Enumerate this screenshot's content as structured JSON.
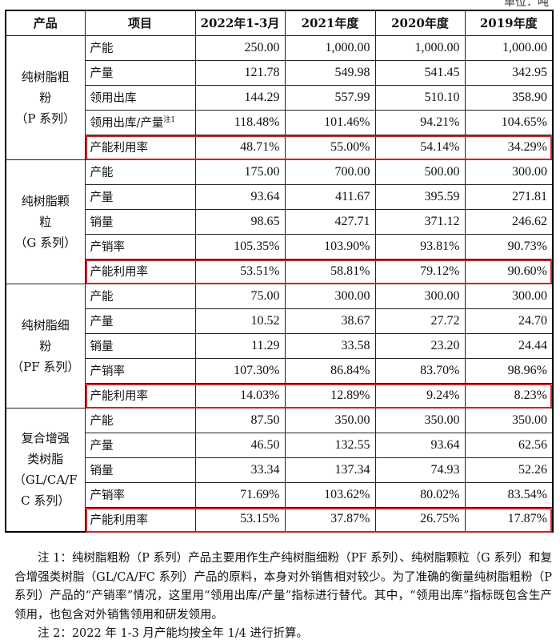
{
  "unit": "单位：吨",
  "headers": [
    "产品",
    "项目",
    "2022年1-3月",
    "2021年度",
    "2020年度",
    "2019年度"
  ],
  "groups": [
    {
      "product": [
        "纯树脂粗",
        "粉",
        "（P 系列）"
      ],
      "rows": [
        {
          "item": "产能",
          "values": [
            "250.00",
            "1,000.00",
            "1,000.00",
            "1,000.00"
          ]
        },
        {
          "item": "产量",
          "values": [
            "121.78",
            "549.98",
            "541.45",
            "342.95"
          ]
        },
        {
          "item": "领用出库",
          "values": [
            "144.29",
            "557.99",
            "510.10",
            "358.90"
          ]
        },
        {
          "item": "领用出库/产量",
          "sup": "注1",
          "values": [
            "118.48%",
            "101.46%",
            "94.21%",
            "104.65%"
          ]
        },
        {
          "item": "产能利用率",
          "highlight": true,
          "values": [
            "48.71%",
            "55.00%",
            "54.14%",
            "34.29%"
          ]
        }
      ]
    },
    {
      "product": [
        "纯树脂颗",
        "粒",
        "（G 系列）"
      ],
      "rows": [
        {
          "item": "产能",
          "values": [
            "175.00",
            "700.00",
            "500.00",
            "300.00"
          ]
        },
        {
          "item": "产量",
          "values": [
            "93.64",
            "411.67",
            "395.59",
            "271.81"
          ]
        },
        {
          "item": "销量",
          "values": [
            "98.65",
            "427.71",
            "371.12",
            "246.62"
          ]
        },
        {
          "item": "产销率",
          "values": [
            "105.35%",
            "103.90%",
            "93.81%",
            "90.73%"
          ]
        },
        {
          "item": "产能利用率",
          "highlight": true,
          "values": [
            "53.51%",
            "58.81%",
            "79.12%",
            "90.60%"
          ]
        }
      ]
    },
    {
      "product": [
        "纯树脂细",
        "粉",
        "（PF 系列）"
      ],
      "rows": [
        {
          "item": "产能",
          "values": [
            "75.00",
            "300.00",
            "300.00",
            "300.00"
          ]
        },
        {
          "item": "产量",
          "values": [
            "10.52",
            "38.67",
            "27.72",
            "24.70"
          ]
        },
        {
          "item": "销量",
          "values": [
            "11.29",
            "33.58",
            "23.20",
            "24.44"
          ]
        },
        {
          "item": "产销率",
          "values": [
            "107.30%",
            "86.84%",
            "83.70%",
            "98.96%"
          ]
        },
        {
          "item": "产能利用率",
          "highlight": true,
          "values": [
            "14.03%",
            "12.89%",
            "9.24%",
            "8.23%"
          ]
        }
      ]
    },
    {
      "product": [
        "复合增强",
        "类树脂",
        "（GL/CA/F",
        "C 系列）"
      ],
      "rows": [
        {
          "item": "产能",
          "values": [
            "87.50",
            "350.00",
            "350.00",
            "350.00"
          ]
        },
        {
          "item": "产量",
          "values": [
            "46.50",
            "132.55",
            "93.64",
            "62.56"
          ]
        },
        {
          "item": "销量",
          "values": [
            "33.34",
            "137.34",
            "74.93",
            "52.26"
          ]
        },
        {
          "item": "产销率",
          "values": [
            "71.69%",
            "103.62%",
            "80.02%",
            "83.54%"
          ]
        },
        {
          "item": "产能利用率",
          "highlight": true,
          "values": [
            "53.15%",
            "37.87%",
            "26.75%",
            "17.87%"
          ]
        }
      ]
    }
  ],
  "notes": [
    "注 1：纯树脂粗粉（P 系列）产品主要用作生产纯树脂细粉（PF 系列）、纯树脂颗粒（G 系列）和复合增强类树脂（GL/CA/FC 系列）产品的原料，本身对外销售相对较少。为了准确的衡量纯树脂粗粉（P 系列）产品的“产销率”情况，这里用“领用出库/产量”指标进行替代。其中，“领用出库”指标既包含生产领用，也包含对外销售领用和研发领用。",
    "注 2：2022 年 1-3 月产能均按全年 1/4 进行折算。"
  ],
  "highlight_color": "#e0191f"
}
